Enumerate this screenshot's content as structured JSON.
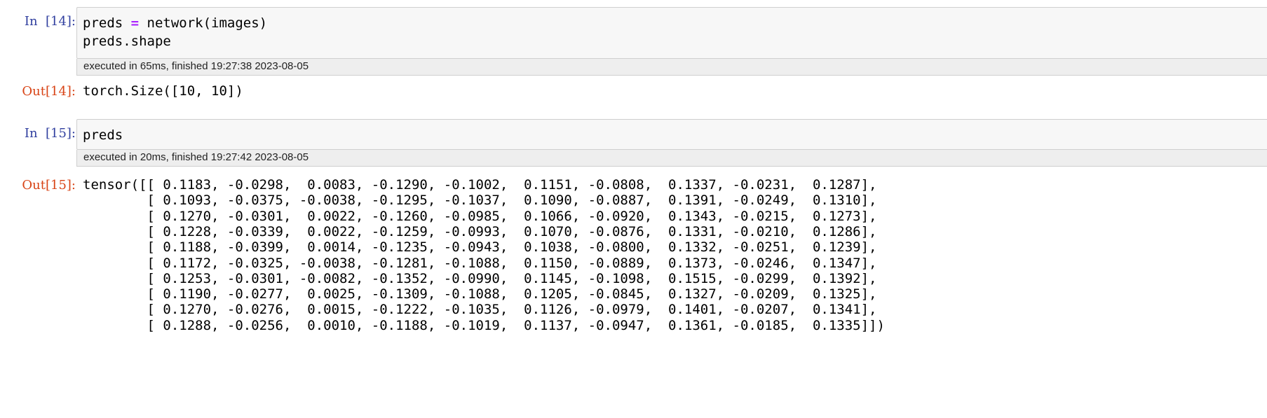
{
  "cells": [
    {
      "in_prompt": "In  [14]:",
      "code_lines": [
        {
          "pre": "preds ",
          "op": "=",
          "post": " network(images)"
        },
        {
          "pre": "preds.shape",
          "op": "",
          "post": ""
        }
      ],
      "exec_info": "executed in 65ms, finished 19:27:38 2023-08-05",
      "out_prompt": "Out[14]:",
      "output": "torch.Size([10, 10])"
    },
    {
      "in_prompt": "In  [15]:",
      "code_lines": [
        {
          "pre": "preds",
          "op": "",
          "post": ""
        }
      ],
      "exec_info": "executed in 20ms, finished 19:27:42 2023-08-05",
      "out_prompt": "Out[15]:",
      "output_lines": [
        "tensor([[ 0.1183, -0.0298,  0.0083, -0.1290, -0.1002,  0.1151, -0.0808,  0.1337, -0.0231,  0.1287],",
        "        [ 0.1093, -0.0375, -0.0038, -0.1295, -0.1037,  0.1090, -0.0887,  0.1391, -0.0249,  0.1310],",
        "        [ 0.1270, -0.0301,  0.0022, -0.1260, -0.0985,  0.1066, -0.0920,  0.1343, -0.0215,  0.1273],",
        "        [ 0.1228, -0.0339,  0.0022, -0.1259, -0.0993,  0.1070, -0.0876,  0.1331, -0.0210,  0.1286],",
        "        [ 0.1188, -0.0399,  0.0014, -0.1235, -0.0943,  0.1038, -0.0800,  0.1332, -0.0251,  0.1239],",
        "        [ 0.1172, -0.0325, -0.0038, -0.1281, -0.1088,  0.1150, -0.0889,  0.1373, -0.0246,  0.1347],",
        "        [ 0.1253, -0.0301, -0.0082, -0.1352, -0.0990,  0.1145, -0.1098,  0.1515, -0.0299,  0.1392],",
        "        [ 0.1190, -0.0277,  0.0025, -0.1309, -0.1088,  0.1205, -0.0845,  0.1327, -0.0209,  0.1325],",
        "        [ 0.1270, -0.0276,  0.0015, -0.1222, -0.1035,  0.1126, -0.0979,  0.1401, -0.0207,  0.1341],",
        "        [ 0.1288, -0.0256,  0.0010, -0.1188, -0.1019,  0.1137, -0.0947,  0.1361, -0.0185,  0.1335]])"
      ]
    }
  ]
}
